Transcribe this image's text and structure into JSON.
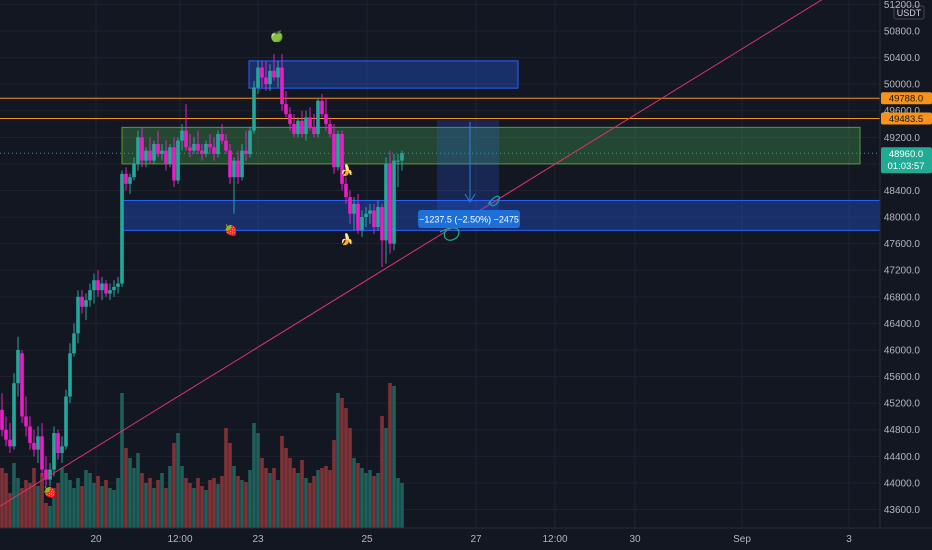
{
  "chart_data": {
    "type": "candlestick",
    "quote_currency": "USDT",
    "price_axis": {
      "ticks": [
        "51200.0",
        "50800.0",
        "50400.0",
        "50000.0",
        "49600.0",
        "49200.0",
        "48800.0",
        "48400.0",
        "48000.0",
        "47600.0",
        "47200.0",
        "46800.0",
        "46400.0",
        "46000.0",
        "45600.0",
        "45200.0",
        "44800.0",
        "44400.0",
        "44000.0",
        "43600.0"
      ],
      "range": [
        43400,
        51300
      ]
    },
    "time_axis": {
      "ticks": [
        "20",
        "12:00",
        "23",
        "25",
        "27",
        "12:00",
        "30",
        "Sep",
        "3"
      ],
      "range": [
        "Aug 19 04:00",
        "Sep 03 00:00"
      ],
      "bar_interval": "2h"
    },
    "price_labels": [
      {
        "text": "49788.0",
        "price": 49788,
        "bg": "#f7931a",
        "fg": "#131722"
      },
      {
        "text": "49483.5",
        "price": 49483.5,
        "bg": "#f7931a",
        "fg": "#131722"
      },
      {
        "text": "48960.0",
        "subtext": "01:03:57",
        "price": 48960,
        "bg": "#22ab94",
        "fg": "#ffffff"
      }
    ],
    "measure_label": "−1237.5 (−2.50%) −2475",
    "colors": {
      "background": "#131722",
      "grid": "#1f2330",
      "up": "#26a69a",
      "down": "#e91ec7",
      "volume_up": "#1e5f5a",
      "volume_down": "#7f3236",
      "trendline": "#d9346b",
      "horizontal_line": "#f7931a",
      "current_price_line": "#26a69a",
      "zone_blue": "#2962ff",
      "zone_green": "#4caf50"
    },
    "markers": [
      {
        "icon": "apple-icon",
        "glyph": "🍏"
      },
      {
        "icon": "strawberry-icon",
        "glyph": "🍓"
      },
      {
        "icon": "strawberry-icon",
        "glyph": "🍓"
      },
      {
        "icon": "banana-icon",
        "glyph": "🍌"
      },
      {
        "icon": "banana-icon",
        "glyph": "🍌"
      }
    ]
  }
}
